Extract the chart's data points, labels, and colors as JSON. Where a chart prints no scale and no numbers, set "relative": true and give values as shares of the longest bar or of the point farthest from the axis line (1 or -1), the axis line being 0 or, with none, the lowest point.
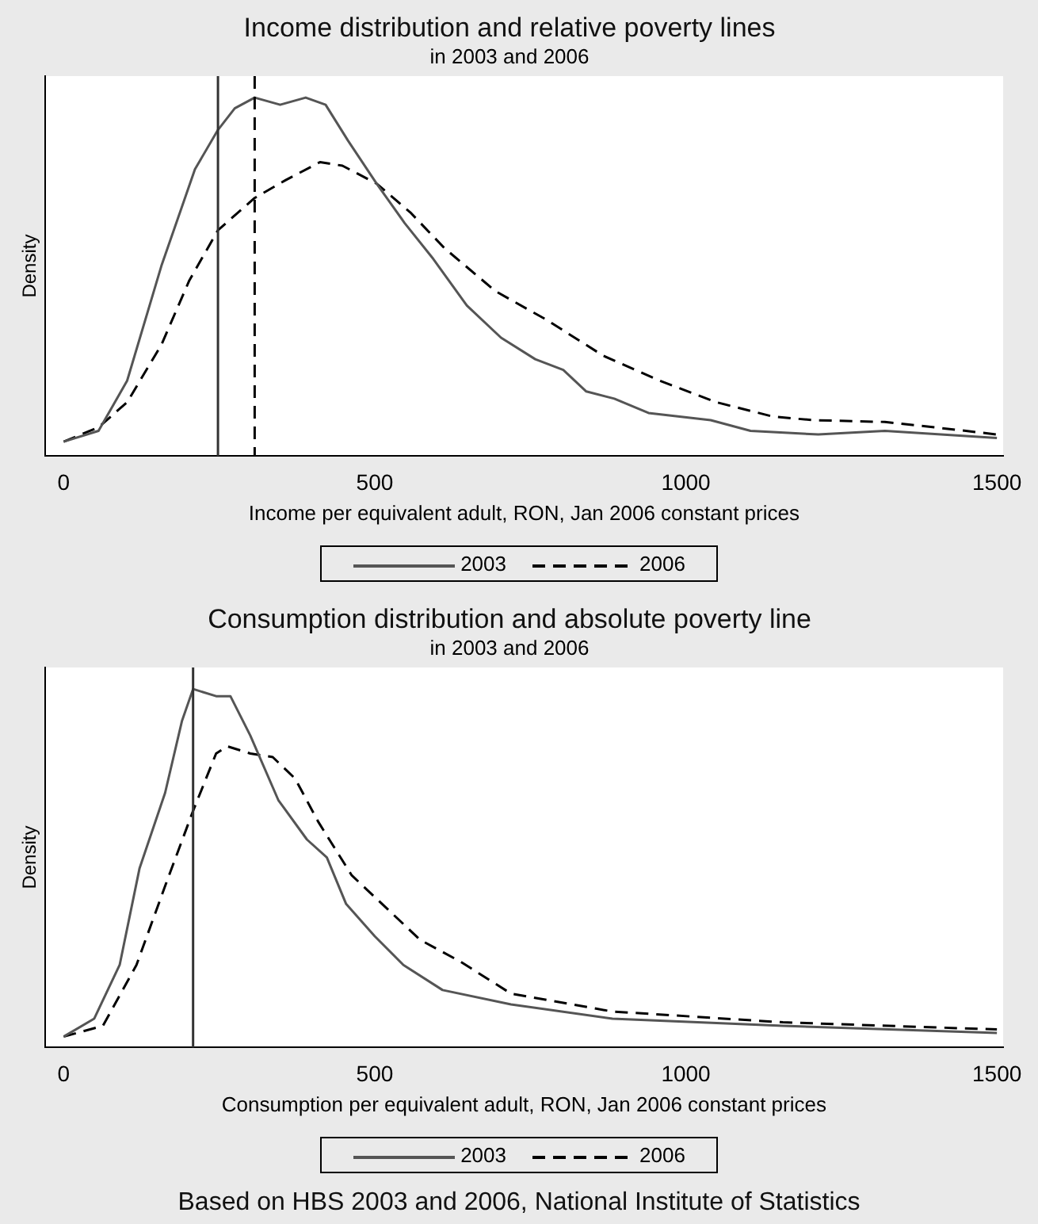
{
  "chart_data": [
    {
      "type": "line",
      "title": "Income distribution and relative poverty lines",
      "subtitle": "in 2003 and 2006",
      "xlabel": "Income per equivalent adult, RON, Jan 2006 constant prices",
      "ylabel": "Density",
      "relative": true,
      "xlim": [
        -30,
        1510
      ],
      "xticks": [
        0,
        500,
        1000,
        1500
      ],
      "tick_labels": "x",
      "grid": false,
      "legend": "bottom",
      "marker": "none",
      "series": [
        {
          "name": "2003",
          "color": "#555555",
          "line_style": "solid",
          "x": [
            0,
            56,
            102,
            157,
            211,
            248,
            275,
            307,
            348,
            389,
            421,
            457,
            503,
            548,
            594,
            648,
            703,
            758,
            803,
            840,
            885,
            940,
            1040,
            1104,
            1213,
            1320,
            1500
          ],
          "values": [
            0.04,
            0.07,
            0.21,
            0.53,
            0.8,
            0.91,
            0.97,
            1.0,
            0.98,
            1.0,
            0.98,
            0.88,
            0.76,
            0.65,
            0.55,
            0.42,
            0.33,
            0.27,
            0.24,
            0.18,
            0.16,
            0.12,
            0.1,
            0.07,
            0.06,
            0.07,
            0.05
          ]
        },
        {
          "name": "2006",
          "color": "#000000",
          "line_style": "dashed",
          "x": [
            0,
            56,
            102,
            157,
            202,
            248,
            307,
            357,
            412,
            448,
            503,
            557,
            612,
            694,
            776,
            867,
            958,
            1049,
            1140,
            1204,
            1320,
            1400,
            1500
          ],
          "values": [
            0.04,
            0.08,
            0.15,
            0.31,
            0.49,
            0.63,
            0.72,
            0.77,
            0.82,
            0.81,
            0.76,
            0.68,
            0.58,
            0.46,
            0.38,
            0.28,
            0.21,
            0.15,
            0.11,
            0.1,
            0.095,
            0.08,
            0.06
          ]
        }
      ],
      "ref_lines": [
        {
          "axis": "x",
          "value": 248,
          "color": "#333333",
          "line_style": "solid"
        },
        {
          "axis": "x",
          "value": 307,
          "color": "#000000",
          "line_style": "dashed"
        }
      ]
    },
    {
      "type": "line",
      "title": "Consumption distribution and absolute poverty line",
      "subtitle": "in 2003 and 2006",
      "xlabel": "Consumption per equivalent adult, RON, Jan 2006 constant prices",
      "ylabel": "Density",
      "relative": true,
      "xlim": [
        -30,
        1510
      ],
      "xticks": [
        0,
        500,
        1000,
        1500
      ],
      "tick_labels": "x",
      "grid": false,
      "legend": "bottom",
      "marker": "none",
      "series": [
        {
          "name": "2003",
          "color": "#555555",
          "line_style": "solid",
          "x": [
            0,
            49,
            90,
            122,
            163,
            190,
            208,
            245,
            268,
            300,
            345,
            391,
            423,
            454,
            500,
            546,
            609,
            719,
            882,
            1156,
            1500
          ],
          "values": [
            0.03,
            0.08,
            0.23,
            0.5,
            0.71,
            0.91,
            1.0,
            0.98,
            0.98,
            0.87,
            0.69,
            0.58,
            0.53,
            0.4,
            0.31,
            0.23,
            0.16,
            0.12,
            0.08,
            0.06,
            0.04
          ]
        },
        {
          "name": "2006",
          "color": "#000000",
          "line_style": "dashed",
          "x": [
            0,
            63,
            117,
            163,
            208,
            245,
            263,
            300,
            336,
            372,
            409,
            463,
            518,
            573,
            637,
            719,
            882,
            1156,
            1500
          ],
          "values": [
            0.03,
            0.06,
            0.23,
            0.45,
            0.66,
            0.82,
            0.84,
            0.82,
            0.81,
            0.75,
            0.63,
            0.48,
            0.39,
            0.3,
            0.24,
            0.15,
            0.1,
            0.07,
            0.05
          ]
        }
      ],
      "ref_lines": [
        {
          "axis": "x",
          "value": 208,
          "color": "#333333",
          "line_style": "solid"
        }
      ],
      "annotations": [
        "Based on HBS 2003 and 2006, National Institute of Statistics"
      ]
    }
  ]
}
